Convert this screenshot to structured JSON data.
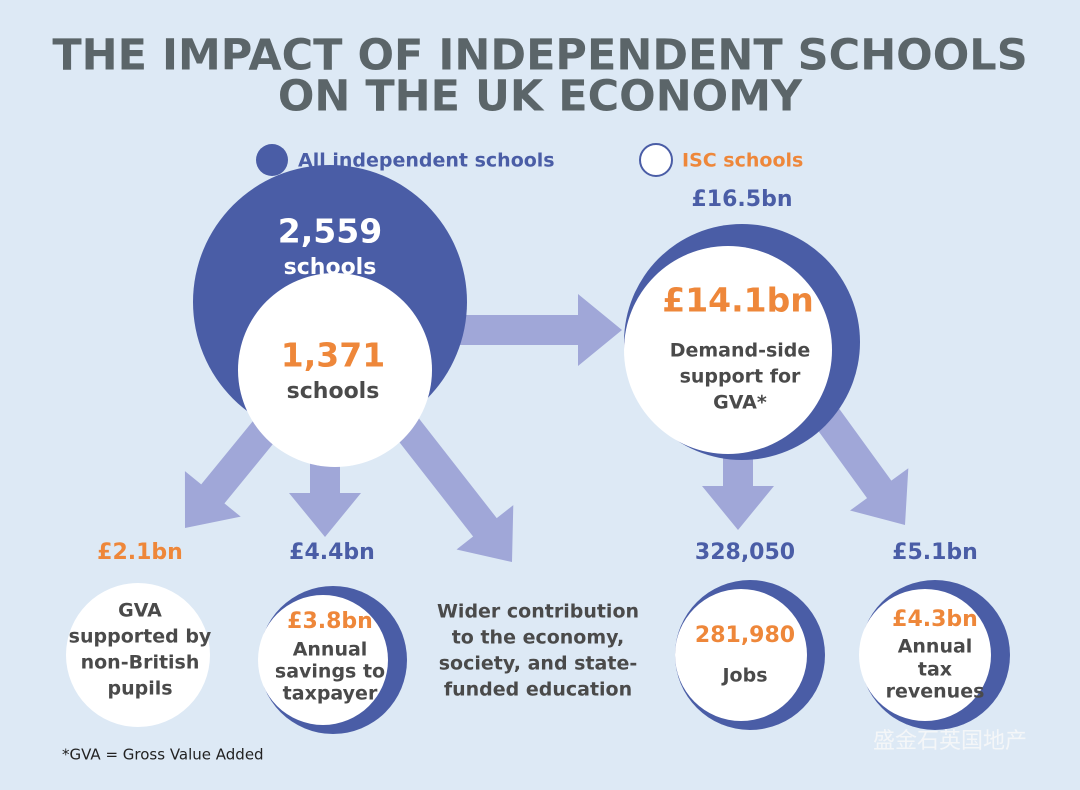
{
  "title_lines": [
    "THE IMPACT OF INDEPENDENT SCHOOLS",
    "ON THE UK ECONOMY"
  ],
  "legend": [
    {
      "label": "All independent schools"
    },
    {
      "label": "ISC schools"
    }
  ],
  "nodes": {
    "all_schools": {
      "value": "2,559",
      "label": "schools"
    },
    "isc_schools": {
      "value": "1,371",
      "label": "schools"
    },
    "gva": {
      "outer": "£16.5bn",
      "inner": "£14.1bn",
      "lines": [
        "Demand-side",
        "support for",
        "GVA*"
      ]
    },
    "non_british": {
      "outer": "£2.1bn",
      "lines": [
        "GVA",
        "supported by",
        "non-British",
        "pupils"
      ]
    },
    "savings": {
      "outer": "£4.4bn",
      "inner": "£3.8bn",
      "lines": [
        "Annual",
        "savings to",
        "taxpayer"
      ]
    },
    "wider": {
      "lines": [
        "Wider contribution",
        "to the economy,",
        "society, and state-",
        "funded education"
      ]
    },
    "jobs": {
      "outer": "328,050",
      "inner": "281,980",
      "lines": [
        "Jobs"
      ]
    },
    "tax": {
      "outer": "£5.1bn",
      "inner": "£4.3bn",
      "lines": [
        "Annual",
        "tax",
        "revenues"
      ]
    }
  },
  "footnote": "*GVA = Gross Value Added",
  "watermark": "盛金石英国地产"
}
